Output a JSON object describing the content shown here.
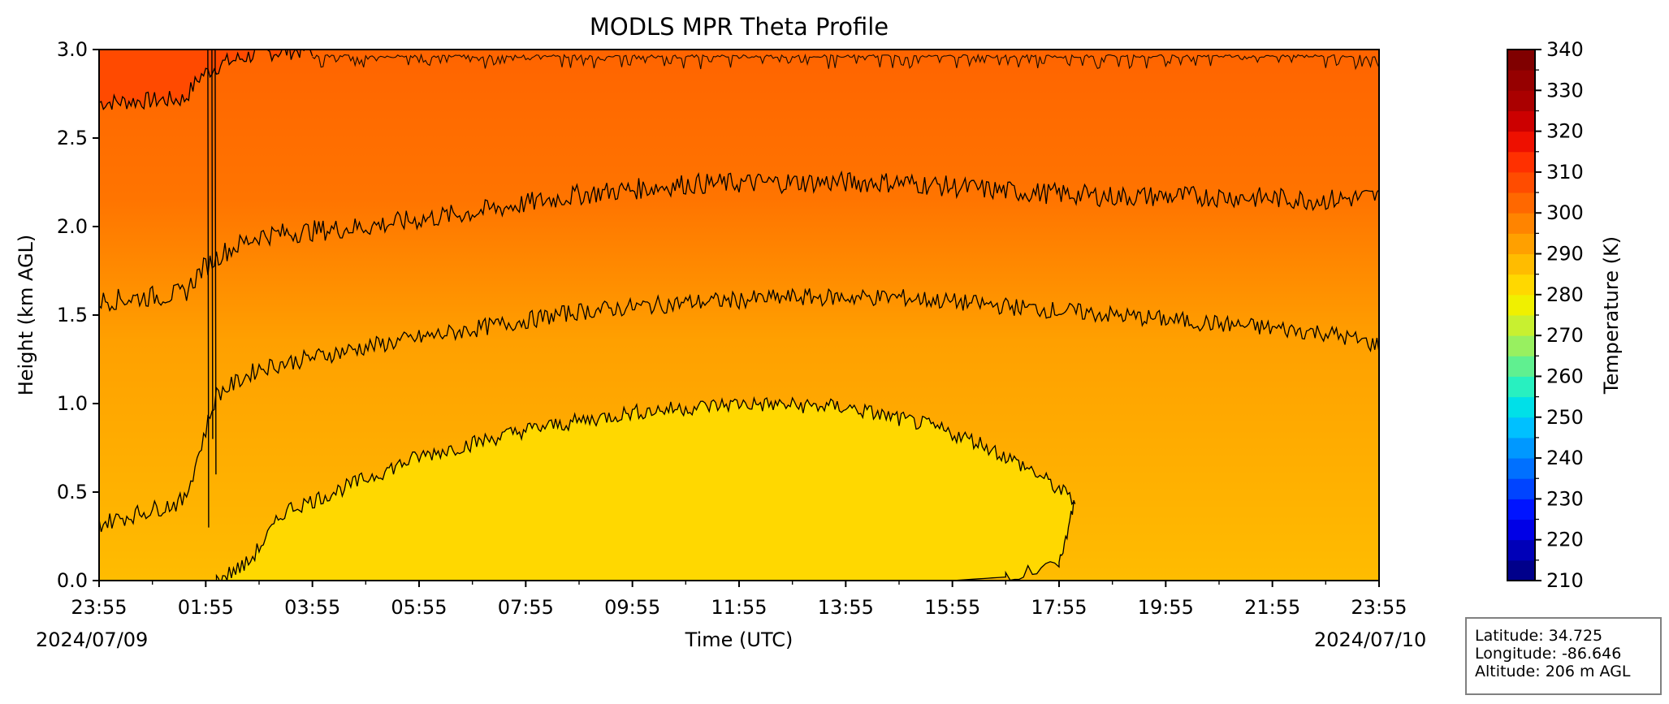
{
  "chart_data": {
    "type": "heatmap",
    "title": "MODLS MPR Theta Profile",
    "xlabel": "Time (UTC)",
    "ylabel": "Height (km AGL)",
    "x_tick_labels": [
      "23:55",
      "01:55",
      "03:55",
      "05:55",
      "07:55",
      "09:55",
      "11:55",
      "13:55",
      "15:55",
      "17:55",
      "19:55",
      "21:55",
      "23:55"
    ],
    "x_hours": [
      0,
      2,
      4,
      6,
      8,
      10,
      12,
      14,
      16,
      18,
      20,
      22,
      24
    ],
    "xlim_hours": [
      0,
      24
    ],
    "start_date": "2024/07/09",
    "end_date": "2024/07/10",
    "y_ticks": [
      0.0,
      0.5,
      1.0,
      1.5,
      2.0,
      2.5,
      3.0
    ],
    "y_tick_labels": [
      "0.0",
      "0.5",
      "1.0",
      "1.5",
      "2.0",
      "2.5",
      "3.0"
    ],
    "ylim": [
      0,
      3
    ],
    "colorbar": {
      "label": "Temperature (K)",
      "range": [
        210,
        340
      ],
      "step": 5,
      "tick_labels": [
        "210",
        "220",
        "230",
        "240",
        "250",
        "260",
        "270",
        "280",
        "290",
        "300",
        "310",
        "320",
        "330",
        "340"
      ],
      "colors": [
        "#00008b",
        "#0000b8",
        "#0000e6",
        "#0014ff",
        "#0044ff",
        "#0070ff",
        "#0098ff",
        "#00c0ff",
        "#00e0e8",
        "#28f0c0",
        "#60f090",
        "#98f060",
        "#c8f030",
        "#f0f000",
        "#ffd800",
        "#ffbc00",
        "#ffa000",
        "#ff8400",
        "#ff6800",
        "#ff4c00",
        "#ff3000",
        "#ee1000",
        "#cc0000",
        "#aa0000",
        "#960000",
        "#800000"
      ]
    },
    "contour_levels_K": [
      300,
      305,
      310,
      315
    ],
    "contour_heights_km": {
      "300": [
        [
          0,
          null
        ],
        [
          2.2,
          0.0
        ],
        [
          2.8,
          0.1
        ],
        [
          3.5,
          0.4
        ],
        [
          4,
          0.45
        ],
        [
          6,
          0.7
        ],
        [
          8,
          0.85
        ],
        [
          10,
          0.95
        ],
        [
          12,
          1.0
        ],
        [
          14,
          0.98
        ],
        [
          15.5,
          0.88
        ],
        [
          16.5,
          0.78
        ],
        [
          17.5,
          0.62
        ],
        [
          18.3,
          0.45
        ],
        [
          18,
          0.1
        ],
        [
          17,
          0.02
        ],
        [
          16,
          0.0
        ]
      ],
      "305": [
        [
          0,
          0.32
        ],
        [
          1.6,
          0.45
        ],
        [
          1.9,
          0.75
        ],
        [
          2.2,
          1.05
        ],
        [
          3,
          1.2
        ],
        [
          5,
          1.32
        ],
        [
          7,
          1.42
        ],
        [
          9,
          1.52
        ],
        [
          11,
          1.57
        ],
        [
          13,
          1.6
        ],
        [
          15,
          1.6
        ],
        [
          17,
          1.55
        ],
        [
          19,
          1.5
        ],
        [
          21,
          1.45
        ],
        [
          23,
          1.4
        ],
        [
          24,
          1.33
        ]
      ],
      "310": [
        [
          0,
          1.58
        ],
        [
          1.6,
          1.62
        ],
        [
          1.9,
          1.75
        ],
        [
          2.3,
          1.85
        ],
        [
          3,
          1.95
        ],
        [
          5,
          2.0
        ],
        [
          7,
          2.08
        ],
        [
          9,
          2.18
        ],
        [
          11,
          2.24
        ],
        [
          13,
          2.25
        ],
        [
          15,
          2.25
        ],
        [
          17,
          2.2
        ],
        [
          19,
          2.17
        ],
        [
          21,
          2.17
        ],
        [
          23,
          2.15
        ],
        [
          24,
          2.17
        ]
      ],
      "315": [
        [
          0,
          2.7
        ],
        [
          1.6,
          2.72
        ],
        [
          1.9,
          2.85
        ],
        [
          2.3,
          2.92
        ],
        [
          3,
          2.98
        ],
        [
          4,
          3.0
        ]
      ]
    },
    "annotations": [
      "Latitude: 34.725",
      "Longitude: -86.646",
      "Altitude: 206 m AGL"
    ]
  }
}
